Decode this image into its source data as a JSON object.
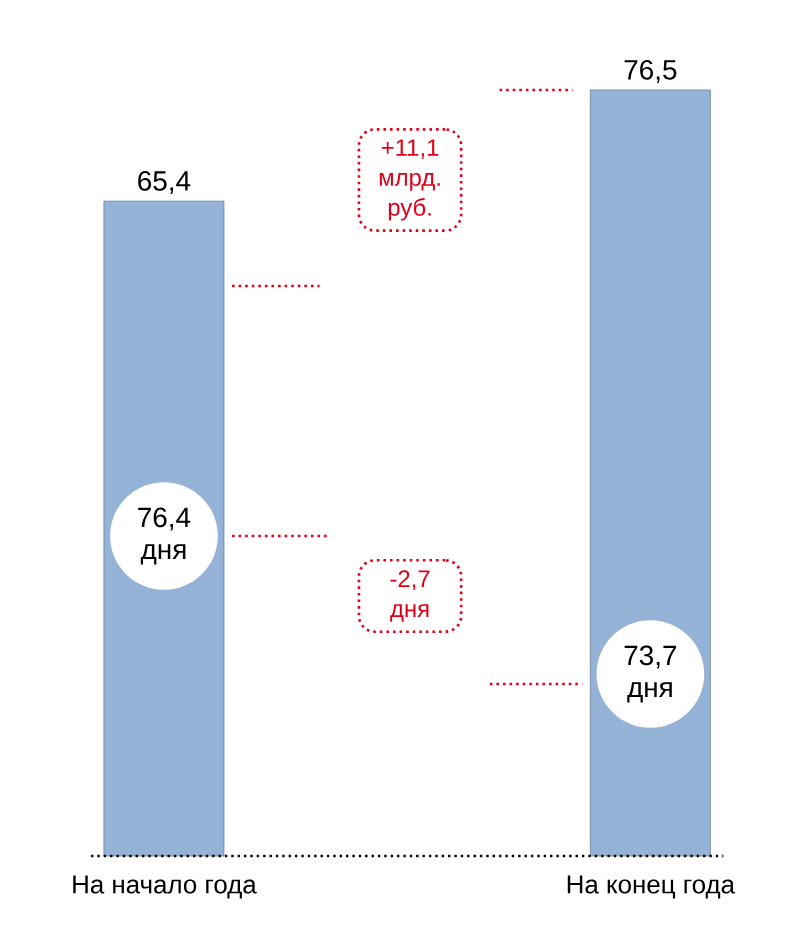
{
  "chart_data": {
    "type": "bar",
    "categories": [
      "На начало года",
      "На конец года"
    ],
    "values": [
      65.4,
      76.5
    ],
    "value_labels": [
      "65,4",
      "76,5"
    ],
    "color": "#95b3d7",
    "annotations": [
      "76,4 дня",
      "73,7 дня",
      "+11,1 млрд. руб.",
      "-2,7 дня"
    ]
  }
}
